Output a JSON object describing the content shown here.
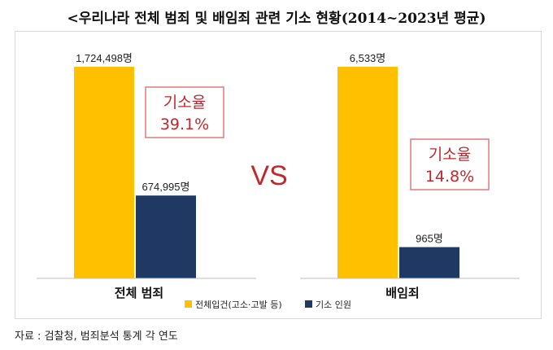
{
  "title": "<우리나라 전체 범죄 및 배임죄 관련 기소 현황(2014~2023년 평균)",
  "source": "자료 : 검찰청, 범죄분석 통계 각 연도",
  "colors": {
    "filed": "#FFC000",
    "indicted": "#1F3864",
    "rate": "#C0282D",
    "rate_border": "#E07A7A"
  },
  "vs_label": "VS",
  "chart_data": [
    {
      "type": "bar",
      "category": "전체 범죄",
      "series": [
        {
          "name": "전체입건(고소·고발 등)",
          "value": 1724498,
          "label": "1,724,498명"
        },
        {
          "name": "기소 인원",
          "value": 674995,
          "label": "674,995명"
        }
      ],
      "annotation": {
        "label": "기소율",
        "value": "39.1%"
      }
    },
    {
      "type": "bar",
      "category": "배임죄",
      "series": [
        {
          "name": "전체입건(고소·고발 등)",
          "value": 6533,
          "label": "6,533명"
        },
        {
          "name": "기소 인원",
          "value": 965,
          "label": "965명"
        }
      ],
      "annotation": {
        "label": "기소율",
        "value": "14.8%"
      }
    }
  ],
  "legend": [
    {
      "name": "전체입건(고소·고발 등)",
      "color": "#FFC000"
    },
    {
      "name": "기소 인원",
      "color": "#1F3864"
    }
  ]
}
